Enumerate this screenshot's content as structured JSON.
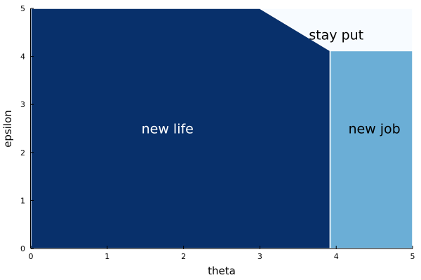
{
  "chart_data": {
    "type": "area",
    "title": "",
    "xlabel": "theta",
    "ylabel": "epsilon",
    "xlim": [
      0,
      5
    ],
    "ylim": [
      0,
      5
    ],
    "xticks": [
      "0",
      "1",
      "2",
      "3",
      "4",
      "5"
    ],
    "yticks": [
      "0",
      "1",
      "2",
      "3",
      "4",
      "5"
    ],
    "grid": false,
    "regions": [
      {
        "label": "new life",
        "label_color": "#ffffff",
        "color": "#08306b",
        "label_at": [
          1.79,
          2.5
        ],
        "polygon": [
          [
            0,
            0
          ],
          [
            3.92,
            0
          ],
          [
            3.92,
            4.12
          ],
          [
            3.0,
            5.0
          ],
          [
            0,
            5.0
          ]
        ]
      },
      {
        "label": "new job",
        "label_color": "#000000",
        "color": "#6baed6",
        "label_at": [
          4.5,
          2.5
        ],
        "polygon": [
          [
            3.92,
            0
          ],
          [
            5.0,
            0
          ],
          [
            5.0,
            4.12
          ],
          [
            3.92,
            4.12
          ]
        ]
      },
      {
        "label": "stay put",
        "label_color": "#000000",
        "color": "#f7fbff",
        "label_at": [
          4.0,
          4.45
        ],
        "polygon": [
          [
            3.0,
            5.0
          ],
          [
            3.92,
            4.12
          ],
          [
            5.0,
            4.12
          ],
          [
            5.0,
            5.0
          ]
        ]
      }
    ]
  }
}
